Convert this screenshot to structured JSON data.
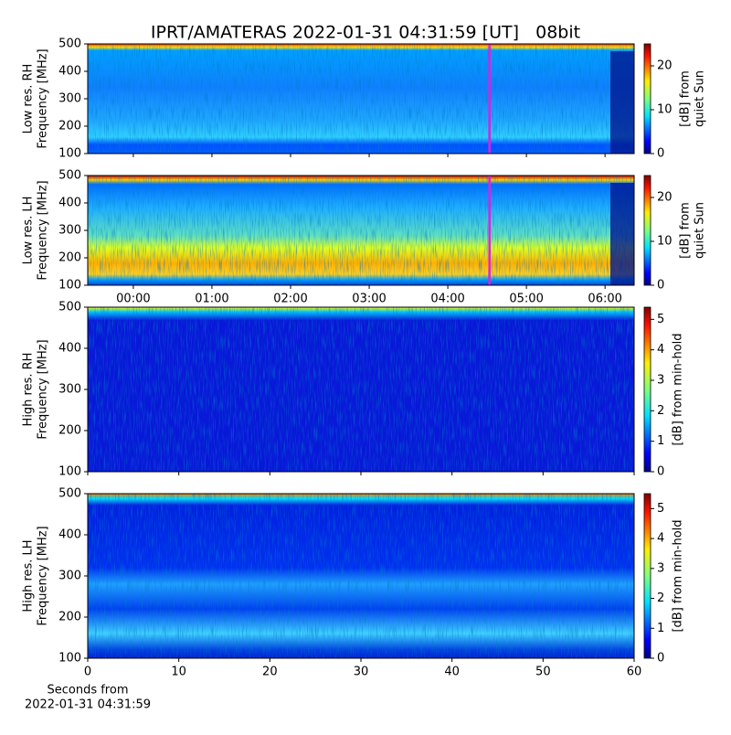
{
  "title": "IPRT/AMATERAS 2022-01-31 04:31:59 [UT]   08bit",
  "chart_data": [
    {
      "type": "heatmap",
      "ylabel": [
        "Low res. RH",
        "Frequency [MHz]"
      ],
      "ylim": [
        100,
        500
      ],
      "yticks": [
        100,
        200,
        300,
        400,
        500
      ],
      "xlim": [
        -0.58,
        6.37
      ],
      "xticks": [
        {
          "value": 0,
          "label": "00:00"
        },
        {
          "value": 1,
          "label": "01:00"
        },
        {
          "value": 2,
          "label": "02:00"
        },
        {
          "value": 3,
          "label": "03:00"
        },
        {
          "value": 4,
          "label": "04:00"
        },
        {
          "value": 5,
          "label": "05:00"
        },
        {
          "value": 6,
          "label": "06:00"
        }
      ],
      "marker_x": 4.53,
      "marker_color": "#e020e0",
      "colorbar": {
        "label": [
          "[dB] from",
          "quiet Sun"
        ],
        "lim": [
          0,
          25
        ],
        "ticks": [
          0,
          10,
          20
        ]
      }
    },
    {
      "type": "heatmap",
      "ylabel": [
        "Low res. LH",
        "Frequency [MHz]"
      ],
      "ylim": [
        100,
        500
      ],
      "yticks": [
        100,
        200,
        300,
        400,
        500
      ],
      "xlim": [
        -0.58,
        6.37
      ],
      "xticks": [
        {
          "value": 0,
          "label": "00:00"
        },
        {
          "value": 1,
          "label": "01:00"
        },
        {
          "value": 2,
          "label": "02:00"
        },
        {
          "value": 3,
          "label": "03:00"
        },
        {
          "value": 4,
          "label": "04:00"
        },
        {
          "value": 5,
          "label": "05:00"
        },
        {
          "value": 6,
          "label": "06:00"
        }
      ],
      "marker_x": 4.53,
      "marker_color": "#e020e0",
      "colorbar": {
        "label": [
          "[dB] from",
          "quiet Sun"
        ],
        "lim": [
          0,
          25
        ],
        "ticks": [
          0,
          10,
          20
        ]
      }
    },
    {
      "type": "heatmap",
      "ylabel": [
        "High res. RH",
        "Frequency [MHz]"
      ],
      "ylim": [
        100,
        500
      ],
      "yticks": [
        100,
        200,
        300,
        400,
        500
      ],
      "xlim": [
        0,
        60
      ],
      "xticks": [
        0,
        10,
        20,
        30,
        40,
        50,
        60
      ],
      "colorbar": {
        "label": [
          "[dB] from min-hold"
        ],
        "lim": [
          0,
          5.4
        ],
        "ticks": [
          0,
          1,
          2,
          3,
          4,
          5
        ]
      }
    },
    {
      "type": "heatmap",
      "ylabel": [
        "High res. LH",
        "Frequency [MHz]"
      ],
      "ylim": [
        100,
        500
      ],
      "yticks": [
        100,
        200,
        300,
        400,
        500
      ],
      "xlim": [
        0,
        60
      ],
      "xticks": [
        0,
        10,
        20,
        30,
        40,
        50,
        60
      ],
      "xlabel": [
        "Seconds from",
        "2022-01-31 04:31:59"
      ],
      "colorbar": {
        "label": [
          "[dB] from min-hold"
        ],
        "lim": [
          0,
          5.5
        ],
        "ticks": [
          0,
          1,
          2,
          3,
          4,
          5
        ]
      }
    }
  ]
}
